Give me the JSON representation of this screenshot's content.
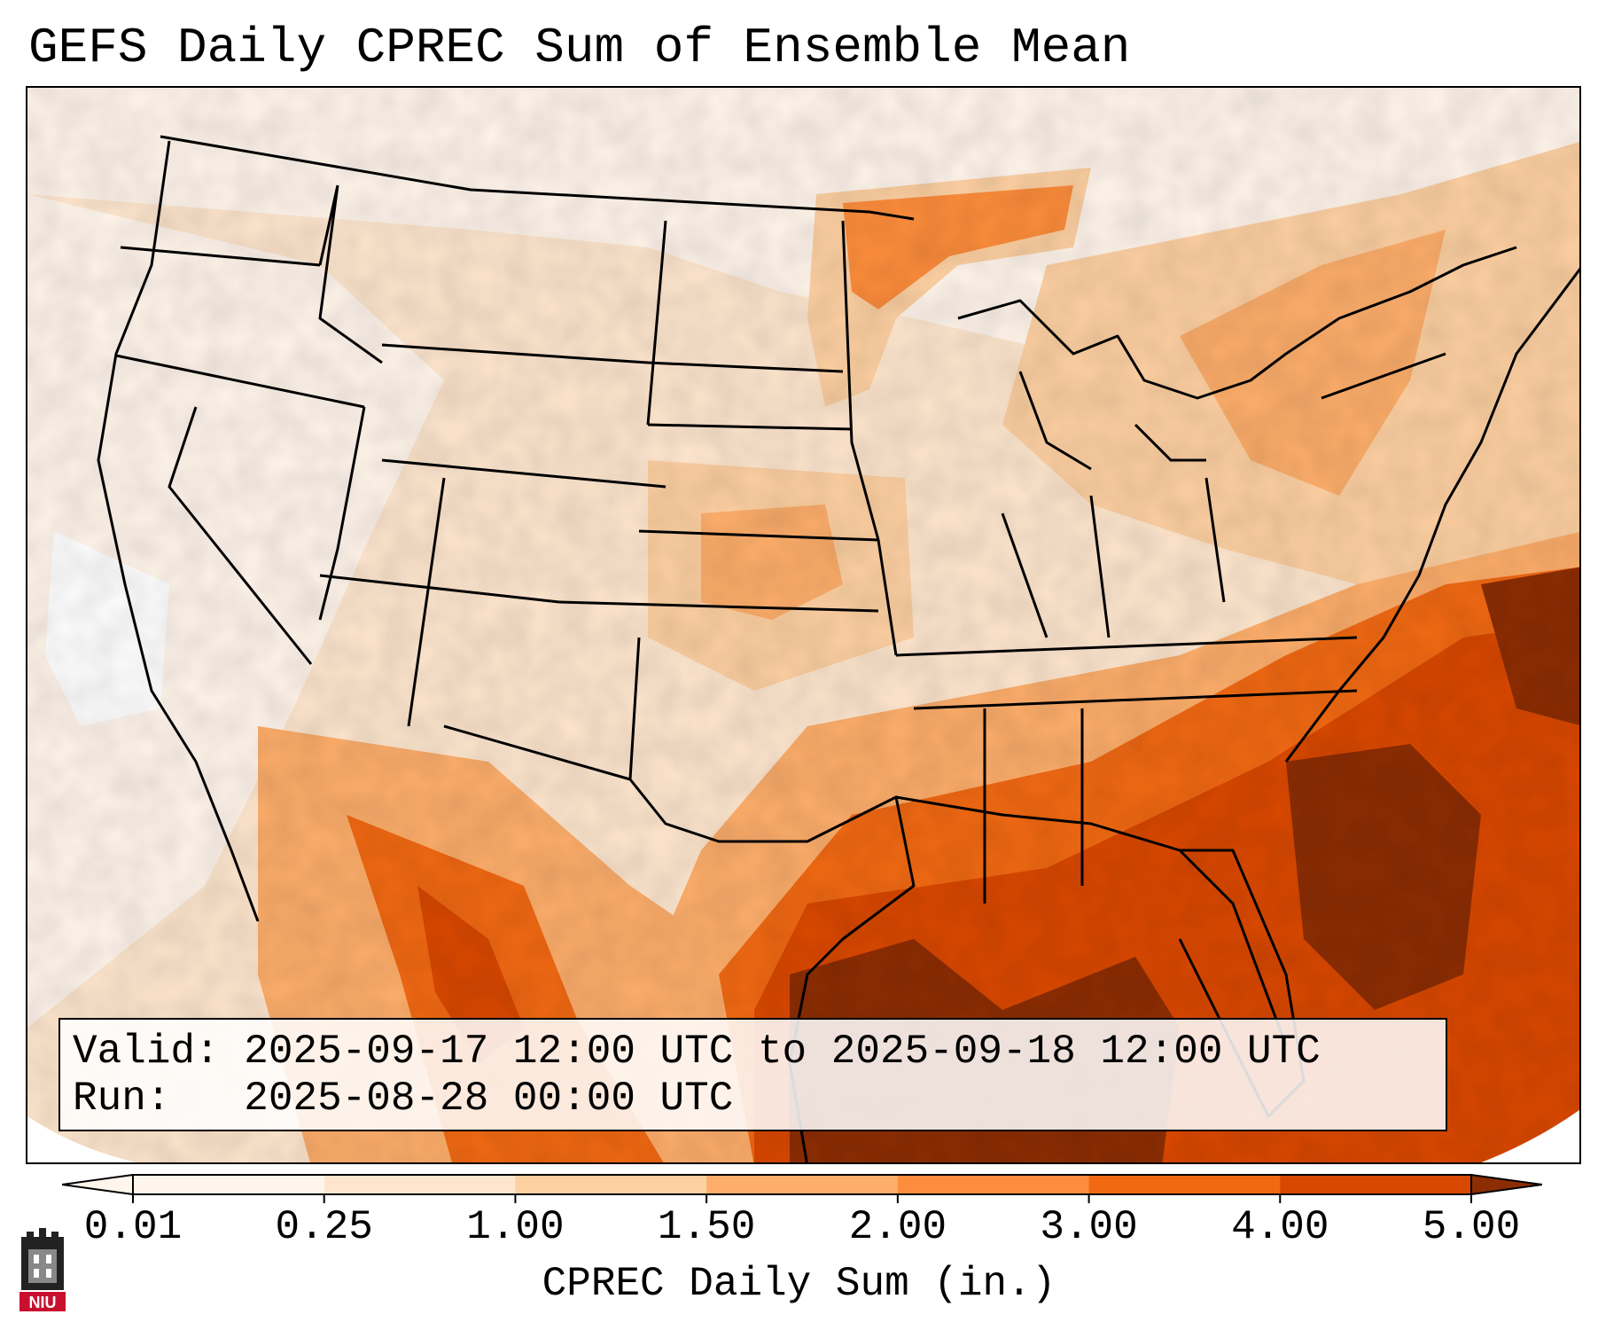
{
  "title": "GEFS Daily CPREC Sum of Ensemble Mean",
  "info": {
    "valid_label": "Valid:",
    "valid_value": "2025-09-17 12:00 UTC to 2025-09-18 12:00 UTC",
    "run_label": "Run:",
    "run_value": "2025-08-28 00:00 UTC"
  },
  "colorbar": {
    "label": "CPREC Daily Sum (in.)",
    "ticks": [
      "0.01",
      "0.25",
      "1.00",
      "1.50",
      "2.00",
      "3.00",
      "4.00",
      "5.00"
    ],
    "colors": [
      "#fff5eb",
      "#fee6ce",
      "#fdd0a2",
      "#fdae6b",
      "#fd8d3c",
      "#f16913",
      "#d94801",
      "#8c2d04"
    ]
  },
  "map": {
    "region": "Contiguous United States",
    "variable": "CPREC",
    "units": "in."
  },
  "logo": {
    "text": "NIU"
  }
}
